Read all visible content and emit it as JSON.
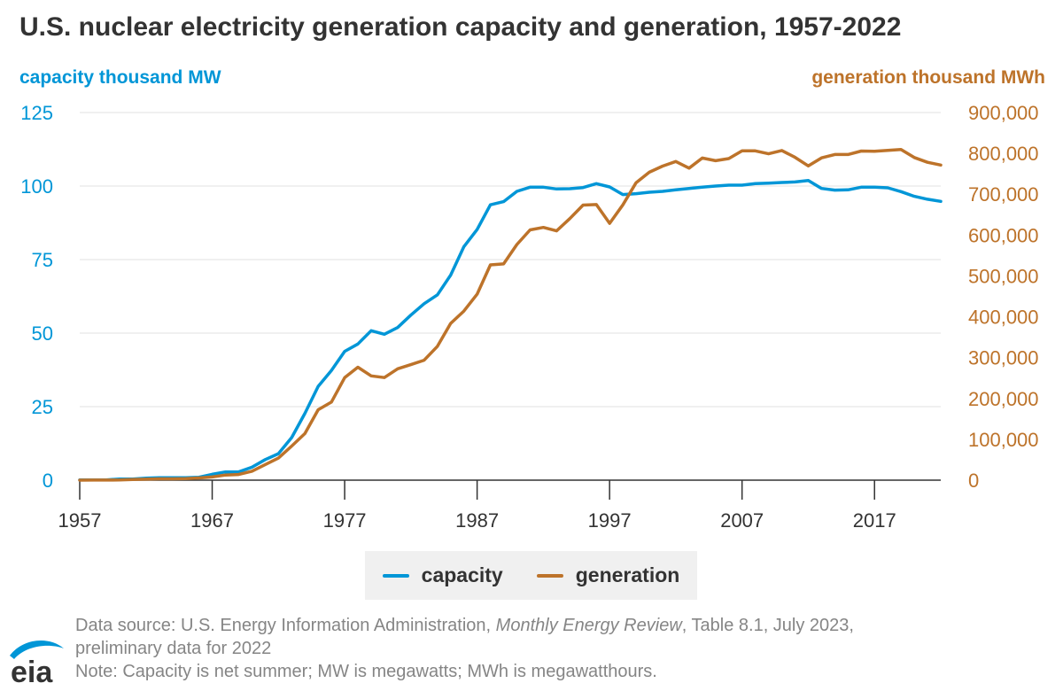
{
  "title": "U.S. nuclear electricity generation capacity and generation, 1957-2022",
  "colors": {
    "capacity": "#0096d7",
    "generation": "#bd732a",
    "text": "#333333",
    "grid": "#e0e0e0",
    "footer": "#858585"
  },
  "footer": {
    "source_prefix": "Data source: U.S. Energy Information Administration,",
    "source_title": "Monthly Energy Review",
    "source_suffix": ", Table 8.1, July 2023,",
    "source_line2": "preliminary data for 2022",
    "note": "Note: Capacity is net summer; MW is megawatts; MWh is megawatthours."
  },
  "logo": {
    "icon": "eia-logo",
    "text": "eia"
  },
  "chart_data": {
    "type": "line",
    "title": "U.S. nuclear electricity generation capacity and generation, 1957-2022",
    "y_left_label": "capacity thousand MW",
    "y_right_label": "generation thousand MWh",
    "xlim": [
      1957,
      2022
    ],
    "ylim_left": [
      0,
      125
    ],
    "ylim_right": [
      0,
      900000
    ],
    "x_ticks": [
      "1957",
      "1967",
      "1977",
      "1987",
      "1997",
      "2007",
      "2017"
    ],
    "y_left_ticks": [
      "0",
      "25",
      "50",
      "75",
      "100",
      "125"
    ],
    "y_right_ticks": [
      "0",
      "100,000",
      "200,000",
      "300,000",
      "400,000",
      "500,000",
      "600,000",
      "700,000",
      "800,000",
      "900,000"
    ],
    "grid": true,
    "legend_position": "bottom",
    "x": [
      1957,
      1958,
      1959,
      1960,
      1961,
      1962,
      1963,
      1964,
      1965,
      1966,
      1967,
      1968,
      1969,
      1970,
      1971,
      1972,
      1973,
      1974,
      1975,
      1976,
      1977,
      1978,
      1979,
      1980,
      1981,
      1982,
      1983,
      1984,
      1985,
      1986,
      1987,
      1988,
      1989,
      1990,
      1991,
      1992,
      1993,
      1994,
      1995,
      1996,
      1997,
      1998,
      1999,
      2000,
      2001,
      2002,
      2003,
      2004,
      2005,
      2006,
      2007,
      2008,
      2009,
      2010,
      2011,
      2012,
      2013,
      2014,
      2015,
      2016,
      2017,
      2018,
      2019,
      2020,
      2021,
      2022
    ],
    "series": [
      {
        "name": "capacity",
        "axis": "left",
        "values": [
          0.1,
          0.1,
          0.1,
          0.4,
          0.4,
          0.7,
          0.8,
          0.8,
          0.8,
          1.0,
          2.0,
          2.8,
          2.8,
          4.4,
          7.0,
          9.0,
          14.5,
          22.7,
          31.9,
          37.3,
          43.8,
          46.3,
          50.8,
          49.6,
          51.9,
          56.1,
          60.0,
          63.0,
          69.7,
          79.4,
          85.2,
          93.6,
          94.7,
          98.2,
          99.6,
          99.6,
          99.0,
          99.1,
          99.5,
          100.8,
          99.7,
          97.1,
          97.4,
          97.9,
          98.2,
          98.7,
          99.2,
          99.6,
          100.0,
          100.3,
          100.3,
          100.8,
          101.0,
          101.2,
          101.4,
          101.9,
          99.2,
          98.6,
          98.7,
          99.6,
          99.6,
          99.4,
          98.1,
          96.5,
          95.5,
          94.8
        ]
      },
      {
        "name": "generation",
        "axis": "right",
        "values": [
          100,
          200,
          200,
          500,
          1700,
          2300,
          3200,
          3300,
          3700,
          5500,
          7700,
          12500,
          13900,
          21800,
          38100,
          54100,
          83500,
          114000,
          172500,
          191100,
          250900,
          276400,
          255200,
          251100,
          272700,
          282800,
          293700,
          327600,
          383700,
          414000,
          455300,
          527000,
          529400,
          576900,
          612600,
          618800,
          610300,
          640400,
          673400,
          674700,
          628600,
          673700,
          728300,
          753900,
          768800,
          780100,
          763700,
          788500,
          782000,
          787200,
          806400,
          806200,
          798900,
          806900,
          790200,
          769300,
          789000,
          797200,
          797200,
          805700,
          805000,
          807100,
          809400,
          789900,
          778200,
          771500
        ]
      }
    ]
  }
}
